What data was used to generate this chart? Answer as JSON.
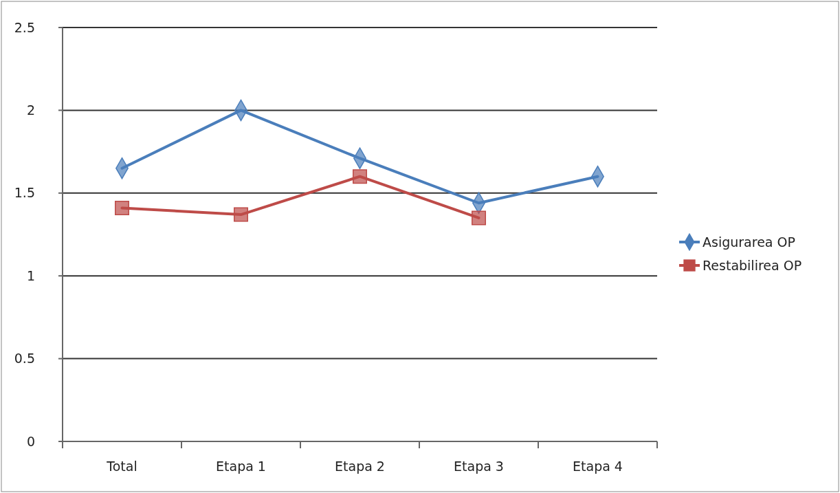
{
  "chart_data": {
    "type": "line",
    "categories": [
      "Total",
      "Etapa 1",
      "Etapa 2",
      "Etapa 3",
      "Etapa 4"
    ],
    "series": [
      {
        "name": "Asigurarea OP",
        "color": "#4a7ebb",
        "marker": "diamond",
        "values": [
          1.65,
          2.0,
          1.71,
          1.44,
          1.6
        ]
      },
      {
        "name": "Restabilirea OP",
        "color": "#be4b48",
        "marker": "square",
        "values": [
          1.41,
          1.37,
          1.6,
          1.35,
          null
        ]
      }
    ],
    "ylim": [
      0,
      2.5
    ],
    "yticks": [
      0,
      0.5,
      1,
      1.5,
      2,
      2.5
    ],
    "grid": "y",
    "legend": "right"
  }
}
